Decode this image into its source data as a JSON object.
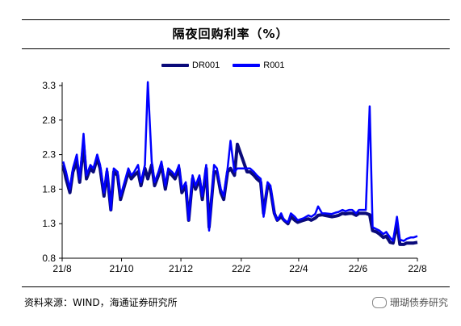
{
  "title": "隔夜回购利率（%）",
  "source": "资料来源：WIND，海通证券研究所",
  "watermark": "珊瑚债券研究",
  "colors": {
    "DR001": "#0a0a7a",
    "R001": "#0000ff"
  },
  "chart_data": {
    "type": "line",
    "title": "隔夜回购利率（%）",
    "xlabel": "",
    "ylabel": "",
    "ylim": [
      0.8,
      3.3
    ],
    "yticks": [
      "0.8",
      "1.3",
      "1.8",
      "2.3",
      "2.8",
      "3.3"
    ],
    "xticks": [
      "21/8",
      "21/10",
      "21/12",
      "22/2",
      "22/4",
      "22/6",
      "22/8"
    ],
    "legend": "top-center",
    "grid": false,
    "series": [
      {
        "name": "DR001",
        "x": [
          "2021-08-02",
          "2021-08-05",
          "2021-08-09",
          "2021-08-12",
          "2021-08-16",
          "2021-08-19",
          "2021-08-23",
          "2021-08-26",
          "2021-08-30",
          "2021-09-02",
          "2021-09-06",
          "2021-09-09",
          "2021-09-13",
          "2021-09-16",
          "2021-09-20",
          "2021-09-23",
          "2021-09-27",
          "2021-09-30",
          "2021-10-08",
          "2021-10-11",
          "2021-10-14",
          "2021-10-18",
          "2021-10-21",
          "2021-10-25",
          "2021-10-28",
          "2021-11-01",
          "2021-11-04",
          "2021-11-08",
          "2021-11-11",
          "2021-11-15",
          "2021-11-18",
          "2021-11-22",
          "2021-11-25",
          "2021-11-29",
          "2021-12-02",
          "2021-12-06",
          "2021-12-09",
          "2021-12-13",
          "2021-12-16",
          "2021-12-20",
          "2021-12-23",
          "2021-12-27",
          "2021-12-30",
          "2022-01-04",
          "2022-01-07",
          "2022-01-11",
          "2022-01-14",
          "2022-01-18",
          "2022-01-21",
          "2022-01-25",
          "2022-01-28",
          "2022-02-07",
          "2022-02-10",
          "2022-02-14",
          "2022-02-17",
          "2022-02-21",
          "2022-02-24",
          "2022-02-28",
          "2022-03-03",
          "2022-03-07",
          "2022-03-10",
          "2022-03-14",
          "2022-03-17",
          "2022-03-21",
          "2022-03-24",
          "2022-03-28",
          "2022-03-31",
          "2022-04-06",
          "2022-04-11",
          "2022-04-14",
          "2022-04-18",
          "2022-04-21",
          "2022-04-25",
          "2022-04-28",
          "2022-05-05",
          "2022-05-09",
          "2022-05-12",
          "2022-05-16",
          "2022-05-19",
          "2022-05-23",
          "2022-05-26",
          "2022-05-30",
          "2022-06-02",
          "2022-06-06",
          "2022-06-09",
          "2022-06-13",
          "2022-06-16",
          "2022-06-20",
          "2022-06-23",
          "2022-06-27",
          "2022-06-30",
          "2022-07-04",
          "2022-07-07",
          "2022-07-11",
          "2022-07-14",
          "2022-07-18",
          "2022-07-21",
          "2022-07-25",
          "2022-07-28",
          "2022-08-01"
        ],
        "values": [
          2.15,
          1.95,
          1.75,
          2.05,
          2.2,
          1.9,
          2.45,
          1.95,
          2.1,
          2.05,
          2.25,
          2.1,
          1.7,
          2.05,
          1.5,
          2.05,
          2.0,
          1.65,
          2.05,
          1.95,
          2.0,
          2.05,
          1.85,
          2.1,
          1.95,
          2.15,
          1.85,
          2.0,
          2.15,
          1.8,
          2.05,
          2.0,
          1.95,
          2.1,
          1.75,
          1.85,
          1.35,
          1.95,
          1.8,
          1.95,
          1.65,
          2.1,
          1.25,
          2.05,
          2.05,
          1.75,
          1.65,
          2.05,
          2.1,
          2.0,
          2.45,
          2.05,
          2.05,
          2.0,
          1.95,
          1.9,
          1.45,
          1.85,
          1.8,
          1.45,
          1.35,
          1.4,
          1.35,
          1.3,
          1.4,
          1.35,
          1.32,
          1.35,
          1.37,
          1.35,
          1.38,
          1.42,
          1.43,
          1.42,
          1.4,
          1.41,
          1.42,
          1.45,
          1.44,
          1.45,
          1.45,
          1.42,
          1.45,
          1.45,
          1.45,
          1.43,
          1.2,
          1.18,
          1.15,
          1.1,
          1.12,
          1.03,
          1.02,
          1.3,
          1.0,
          1.0,
          1.02,
          1.02,
          1.02,
          1.03
        ],
        "_note": ""
      },
      {
        "name": "R001",
        "x": [
          "2021-08-02",
          "2021-08-05",
          "2021-08-09",
          "2021-08-12",
          "2021-08-16",
          "2021-08-19",
          "2021-08-23",
          "2021-08-26",
          "2021-08-30",
          "2021-09-02",
          "2021-09-06",
          "2021-09-09",
          "2021-09-13",
          "2021-09-16",
          "2021-09-20",
          "2021-09-23",
          "2021-09-27",
          "2021-09-30",
          "2021-10-08",
          "2021-10-11",
          "2021-10-14",
          "2021-10-18",
          "2021-10-21",
          "2021-10-25",
          "2021-10-28",
          "2021-11-01",
          "2021-11-04",
          "2021-11-08",
          "2021-11-11",
          "2021-11-15",
          "2021-11-18",
          "2021-11-22",
          "2021-11-25",
          "2021-11-29",
          "2021-12-02",
          "2021-12-06",
          "2021-12-09",
          "2021-12-13",
          "2021-12-16",
          "2021-12-20",
          "2021-12-23",
          "2021-12-27",
          "2021-12-30",
          "2022-01-04",
          "2022-01-07",
          "2022-01-11",
          "2022-01-14",
          "2022-01-18",
          "2022-01-21",
          "2022-01-25",
          "2022-01-28",
          "2022-02-07",
          "2022-02-10",
          "2022-02-14",
          "2022-02-17",
          "2022-02-21",
          "2022-02-24",
          "2022-02-28",
          "2022-03-03",
          "2022-03-07",
          "2022-03-10",
          "2022-03-14",
          "2022-03-17",
          "2022-03-21",
          "2022-03-24",
          "2022-03-28",
          "2022-03-31",
          "2022-04-06",
          "2022-04-11",
          "2022-04-14",
          "2022-04-18",
          "2022-04-21",
          "2022-04-25",
          "2022-04-28",
          "2022-05-05",
          "2022-05-09",
          "2022-05-12",
          "2022-05-16",
          "2022-05-19",
          "2022-05-23",
          "2022-05-26",
          "2022-05-30",
          "2022-06-02",
          "2022-06-06",
          "2022-06-09",
          "2022-06-13",
          "2022-06-16",
          "2022-06-20",
          "2022-06-23",
          "2022-06-27",
          "2022-06-30",
          "2022-07-04",
          "2022-07-07",
          "2022-07-11",
          "2022-07-14",
          "2022-07-18",
          "2022-07-21",
          "2022-07-25",
          "2022-07-28",
          "2022-08-01"
        ],
        "values": [
          2.2,
          2.05,
          1.8,
          2.1,
          2.3,
          1.95,
          2.6,
          2.0,
          2.15,
          2.1,
          2.3,
          2.15,
          1.75,
          2.1,
          1.5,
          2.1,
          2.05,
          1.7,
          2.1,
          2.0,
          2.05,
          2.15,
          1.9,
          2.15,
          3.35,
          2.2,
          1.9,
          2.05,
          2.2,
          1.85,
          2.1,
          2.05,
          2.0,
          2.15,
          1.8,
          1.9,
          1.35,
          2.0,
          1.85,
          2.0,
          1.7,
          2.15,
          1.2,
          2.15,
          2.1,
          1.8,
          1.7,
          2.1,
          2.5,
          2.05,
          2.1,
          2.1,
          2.1,
          2.05,
          2.0,
          1.95,
          1.4,
          1.9,
          1.85,
          1.45,
          1.35,
          1.45,
          1.35,
          1.32,
          1.45,
          1.4,
          1.35,
          1.38,
          1.42,
          1.4,
          1.44,
          1.55,
          1.45,
          1.45,
          1.44,
          1.46,
          1.47,
          1.5,
          1.48,
          1.5,
          1.5,
          1.45,
          1.5,
          1.5,
          1.5,
          3.0,
          1.25,
          1.22,
          1.2,
          1.15,
          1.18,
          1.1,
          1.05,
          1.4,
          1.07,
          1.05,
          1.08,
          1.1,
          1.1,
          1.12
        ],
        "_note": ""
      }
    ]
  }
}
